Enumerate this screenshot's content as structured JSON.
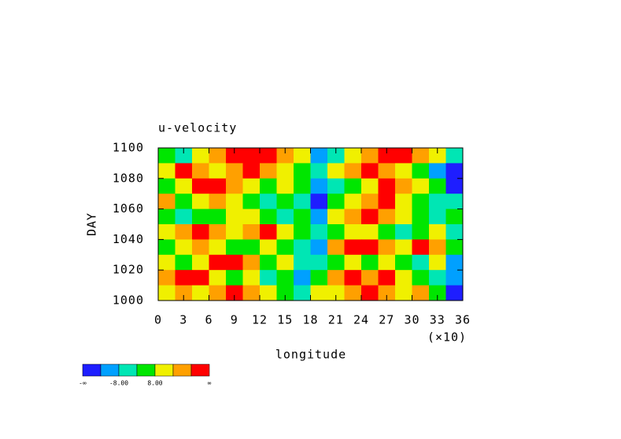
{
  "chart_data": {
    "type": "contour",
    "title": "u-velocity",
    "x_label": "longitude",
    "x_multiplier": "(×10)",
    "y_label": "DAY",
    "xlim": [
      0,
      36
    ],
    "xticks": [
      0,
      3,
      6,
      9,
      12,
      15,
      18,
      21,
      24,
      27,
      30,
      33,
      36
    ],
    "ylim": [
      1000,
      1100
    ],
    "yticks": [
      1000,
      1020,
      1040,
      1060,
      1080,
      1100
    ],
    "colors": [
      "#1e1eff",
      "#00a0ff",
      "#00e6b4",
      "#00e600",
      "#f0f000",
      "#ffa000",
      "#ff0000"
    ],
    "level_labels": [
      "-∞",
      null,
      "-8.00",
      null,
      "8.00",
      null,
      null,
      "∞"
    ],
    "field": [
      [
        3,
        2,
        4,
        5,
        6,
        6,
        6,
        5,
        4,
        1,
        2,
        4,
        5,
        6,
        6,
        5,
        4,
        2
      ],
      [
        4,
        6,
        5,
        4,
        5,
        6,
        5,
        4,
        3,
        2,
        4,
        5,
        6,
        5,
        4,
        3,
        1,
        0
      ],
      [
        3,
        4,
        6,
        6,
        5,
        4,
        3,
        4,
        3,
        1,
        2,
        3,
        4,
        6,
        5,
        4,
        3,
        0
      ],
      [
        5,
        3,
        4,
        5,
        4,
        3,
        2,
        3,
        2,
        0,
        3,
        4,
        5,
        6,
        4,
        3,
        2,
        2
      ],
      [
        3,
        2,
        3,
        3,
        4,
        4,
        3,
        2,
        3,
        1,
        4,
        5,
        6,
        5,
        4,
        3,
        2,
        3
      ],
      [
        4,
        5,
        6,
        5,
        4,
        5,
        6,
        4,
        3,
        2,
        3,
        4,
        4,
        3,
        2,
        3,
        4,
        2
      ],
      [
        3,
        4,
        5,
        4,
        3,
        3,
        4,
        3,
        2,
        1,
        5,
        6,
        6,
        5,
        4,
        6,
        5,
        3
      ],
      [
        4,
        3,
        4,
        6,
        6,
        5,
        3,
        4,
        2,
        2,
        3,
        4,
        3,
        4,
        3,
        2,
        4,
        1
      ],
      [
        5,
        6,
        6,
        4,
        3,
        4,
        2,
        3,
        1,
        3,
        5,
        6,
        5,
        6,
        4,
        3,
        2,
        1
      ],
      [
        4,
        5,
        4,
        5,
        6,
        5,
        4,
        3,
        2,
        4,
        4,
        5,
        6,
        5,
        4,
        5,
        3,
        0
      ]
    ]
  }
}
